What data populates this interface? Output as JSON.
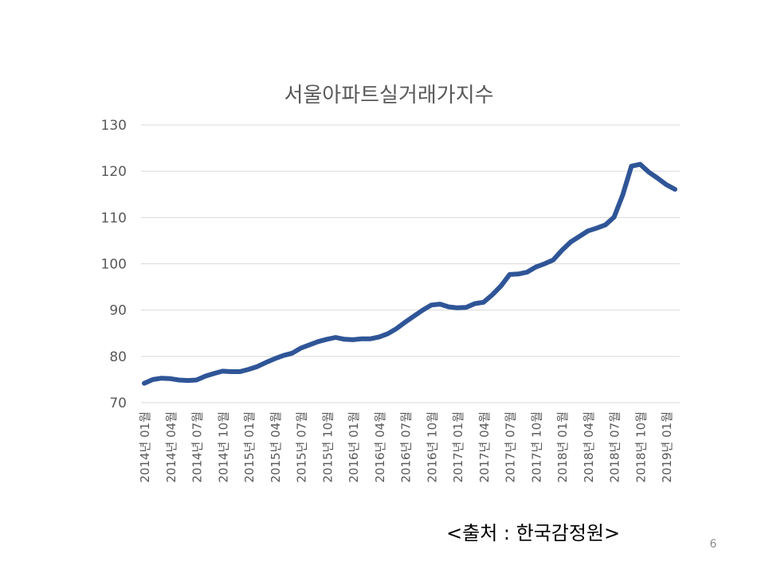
{
  "source_note": "<출처 : 한국감정원>",
  "page_number": "6",
  "colors": {
    "line": "#2F5597",
    "grid": "#d9d9d9",
    "text": "#595959"
  },
  "chart_data": {
    "type": "line",
    "title": "서울아파트실거래가지수",
    "xlabel": "",
    "ylabel": "",
    "ylim": [
      70,
      130
    ],
    "yticks": [
      "70",
      "80",
      "90",
      "100",
      "110",
      "120",
      "130"
    ],
    "grid": true,
    "legend": "none",
    "x": [
      "2014년 01월",
      "2014년 02월",
      "2014년 03월",
      "2014년 04월",
      "2014년 05월",
      "2014년 06월",
      "2014년 07월",
      "2014년 08월",
      "2014년 09월",
      "2014년 10월",
      "2014년 11월",
      "2014년 12월",
      "2015년 01월",
      "2015년 02월",
      "2015년 03월",
      "2015년 04월",
      "2015년 05월",
      "2015년 06월",
      "2015년 07월",
      "2015년 08월",
      "2015년 09월",
      "2015년 10월",
      "2015년 11월",
      "2015년 12월",
      "2016년 01월",
      "2016년 02월",
      "2016년 03월",
      "2016년 04월",
      "2016년 05월",
      "2016년 06월",
      "2016년 07월",
      "2016년 08월",
      "2016년 09월",
      "2016년 10월",
      "2016년 11월",
      "2016년 12월",
      "2017년 01월",
      "2017년 02월",
      "2017년 03월",
      "2017년 04월",
      "2017년 05월",
      "2017년 06월",
      "2017년 07월",
      "2017년 08월",
      "2017년 09월",
      "2017년 10월",
      "2017년 11월",
      "2017년 12월",
      "2018년 01월",
      "2018년 02월",
      "2018년 03월",
      "2018년 04월",
      "2018년 05월",
      "2018년 06월",
      "2018년 07월",
      "2018년 08월",
      "2018년 09월",
      "2018년 10월",
      "2018년 11월",
      "2018년 12월",
      "2019년 01월",
      "2019년 02월"
    ],
    "xtick_labels": [
      "2014년 01월",
      "2014년 04월",
      "2014년 07월",
      "2014년 10월",
      "2015년 01월",
      "2015년 04월",
      "2015년 07월",
      "2015년 10월",
      "2016년 01월",
      "2016년 04월",
      "2016년 07월",
      "2016년 10월",
      "2017년 01월",
      "2017년 04월",
      "2017년 07월",
      "2017년 10월",
      "2018년 01월",
      "2018년 04월",
      "2018년 07월",
      "2018년 10월",
      "2019년 01월"
    ],
    "values": [
      74.2,
      75.0,
      75.3,
      75.2,
      74.9,
      74.8,
      74.9,
      75.7,
      76.3,
      76.8,
      76.7,
      76.7,
      77.2,
      77.8,
      78.7,
      79.5,
      80.2,
      80.7,
      81.8,
      82.5,
      83.2,
      83.7,
      84.1,
      83.7,
      83.6,
      83.8,
      83.8,
      84.2,
      84.9,
      86.0,
      87.4,
      88.7,
      90.0,
      91.1,
      91.3,
      90.7,
      90.5,
      90.6,
      91.4,
      91.7,
      93.3,
      95.2,
      97.7,
      97.8,
      98.2,
      99.3,
      100.0,
      100.8,
      102.9,
      104.7,
      105.9,
      107.1,
      107.7,
      108.4,
      110.1,
      114.9,
      121.1,
      121.5,
      119.8,
      118.5,
      117.1,
      116.1
    ]
  }
}
